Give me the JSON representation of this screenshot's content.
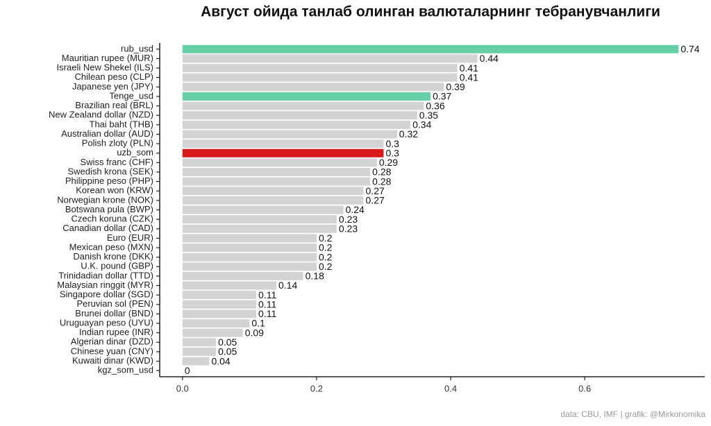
{
  "chart_data": {
    "type": "bar",
    "orientation": "horizontal",
    "title": "Август ойида танлаб олинган валюталарнинг тебранувчанлиги",
    "caption": "data: CBU, IMF | grafik: @Mirkonomika",
    "categories": [
      "rub_usd",
      "Mauritian rupee (MUR)",
      "Israeli New Shekel (ILS)",
      "Chilean peso (CLP)",
      "Japanese yen (JPY)",
      "Tenge_usd",
      "Brazilian real (BRL)",
      "New Zealand dollar (NZD)",
      "Thai baht (THB)",
      "Australian dollar (AUD)",
      "Polish zloty (PLN)",
      "uzb_som",
      "Swiss franc (CHF)",
      "Swedish krona (SEK)",
      "Philippine peso (PHP)",
      "Korean won (KRW)",
      "Norwegian krone (NOK)",
      "Botswana pula (BWP)",
      "Czech koruna (CZK)",
      "Canadian dollar (CAD)",
      "Euro (EUR)",
      "Mexican peso (MXN)",
      "Danish krone (DKK)",
      "U.K. pound (GBP)",
      "Trinidadian dollar (TTD)",
      "Malaysian ringgit (MYR)",
      "Singapore dollar (SGD)",
      "Peruvian sol (PEN)",
      "Brunei dollar (BND)",
      "Uruguayan peso (UYU)",
      "Indian rupee (INR)",
      "Algerian dinar (DZD)",
      "Chinese yuan (CNY)",
      "Kuwaiti dinar (KWD)",
      "kgz_som_usd"
    ],
    "values": [
      0.74,
      0.44,
      0.41,
      0.41,
      0.39,
      0.37,
      0.36,
      0.35,
      0.34,
      0.32,
      0.3,
      0.3,
      0.29,
      0.28,
      0.28,
      0.27,
      0.27,
      0.24,
      0.23,
      0.23,
      0.2,
      0.2,
      0.2,
      0.2,
      0.18,
      0.14,
      0.11,
      0.11,
      0.11,
      0.1,
      0.09,
      0.05,
      0.05,
      0.04,
      0
    ],
    "colors": [
      "#66cfa6",
      "#d3d3d3",
      "#d3d3d3",
      "#d3d3d3",
      "#d3d3d3",
      "#66cfa6",
      "#d3d3d3",
      "#d3d3d3",
      "#d3d3d3",
      "#d3d3d3",
      "#d3d3d3",
      "#d7191c",
      "#d3d3d3",
      "#d3d3d3",
      "#d3d3d3",
      "#d3d3d3",
      "#d3d3d3",
      "#d3d3d3",
      "#d3d3d3",
      "#d3d3d3",
      "#d3d3d3",
      "#d3d3d3",
      "#d3d3d3",
      "#d3d3d3",
      "#d3d3d3",
      "#d3d3d3",
      "#d3d3d3",
      "#d3d3d3",
      "#d3d3d3",
      "#d3d3d3",
      "#d3d3d3",
      "#d3d3d3",
      "#d3d3d3",
      "#d3d3d3",
      "#d3d3d3"
    ],
    "xlim": [
      -0.034,
      0.779
    ],
    "xticks": [
      {
        "value": 0,
        "label": "0.0"
      },
      0.2,
      0.4,
      0.6
    ],
    "grid": false
  }
}
